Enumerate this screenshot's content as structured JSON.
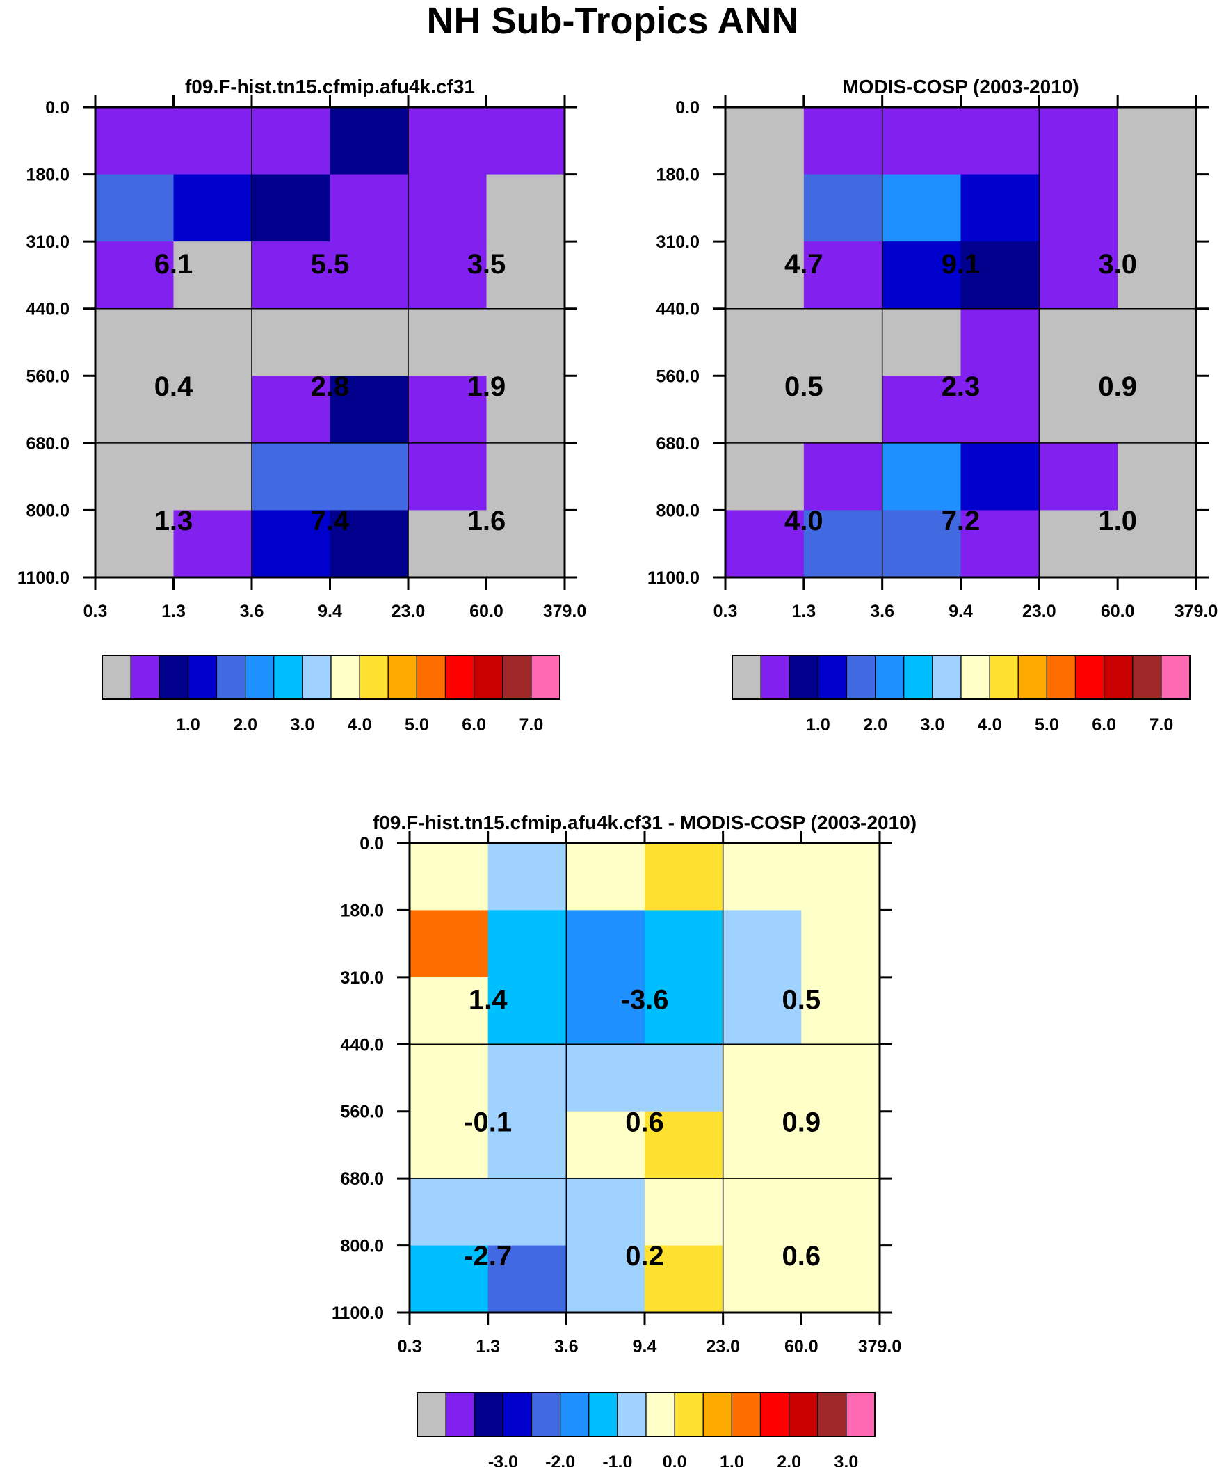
{
  "title": "NH Sub-Tropics ANN",
  "palette": {
    "missing": "#c0c0c0",
    "colors": [
      "#8220f0",
      "#00008c",
      "#0000cd",
      "#4169e1",
      "#1e90ff",
      "#00bfff",
      "#a0d2ff",
      "#ffffc8",
      "#ffe132",
      "#ffaa00",
      "#ff6e00",
      "#ff0000",
      "#c80000",
      "#a02828",
      "#ff69b4"
    ]
  },
  "chart_data": [
    {
      "type": "heatmap",
      "name": "model",
      "title": "f09.F-hist.tn15.cfmip.afu4k.cf31",
      "x_ticks": [
        "0.3",
        "1.3",
        "3.6",
        "9.4",
        "23.0",
        "60.0",
        "379.0"
      ],
      "y_ticks": [
        "0.0",
        "180.0",
        "310.0",
        "440.0",
        "560.0",
        "680.0",
        "800.0",
        "1100.0"
      ],
      "cells": [
        [
          0,
          0,
          0,
          1,
          0,
          0
        ],
        [
          3,
          2,
          1,
          0,
          0,
          -1
        ],
        [
          0,
          -1,
          0,
          0,
          0,
          -1
        ],
        [
          -1,
          -1,
          -1,
          -1,
          -1,
          -1
        ],
        [
          -1,
          -1,
          0,
          1,
          0,
          -1
        ],
        [
          -1,
          -1,
          3,
          3,
          0,
          -1
        ],
        [
          -1,
          0,
          2,
          1,
          -1,
          -1
        ]
      ],
      "box_values": [
        [
          "6.1",
          "5.5",
          "3.5"
        ],
        [
          "0.4",
          "2.8",
          "1.9"
        ],
        [
          "1.3",
          "7.4",
          "1.6"
        ]
      ],
      "colorbar_labels": [
        "1.0",
        "2.0",
        "3.0",
        "4.0",
        "5.0",
        "6.0",
        "7.0"
      ]
    },
    {
      "type": "heatmap",
      "name": "obs",
      "title": "MODIS-COSP (2003-2010)",
      "x_ticks": [
        "0.3",
        "1.3",
        "3.6",
        "9.4",
        "23.0",
        "60.0",
        "379.0"
      ],
      "y_ticks": [
        "0.0",
        "180.0",
        "310.0",
        "440.0",
        "560.0",
        "680.0",
        "800.0",
        "1100.0"
      ],
      "cells": [
        [
          -1,
          0,
          0,
          0,
          0,
          -1
        ],
        [
          -1,
          3,
          4,
          2,
          0,
          -1
        ],
        [
          -1,
          0,
          2,
          1,
          0,
          -1
        ],
        [
          -1,
          -1,
          -1,
          0,
          -1,
          -1
        ],
        [
          -1,
          -1,
          0,
          0,
          -1,
          -1
        ],
        [
          -1,
          0,
          4,
          2,
          0,
          -1
        ],
        [
          0,
          3,
          3,
          0,
          -1,
          -1
        ]
      ],
      "box_values": [
        [
          "4.7",
          "9.1",
          "3.0"
        ],
        [
          "0.5",
          "2.3",
          "0.9"
        ],
        [
          "4.0",
          "7.2",
          "1.0"
        ]
      ],
      "colorbar_labels": [
        "1.0",
        "2.0",
        "3.0",
        "4.0",
        "5.0",
        "6.0",
        "7.0"
      ]
    },
    {
      "type": "heatmap",
      "name": "diff",
      "title": "f09.F-hist.tn15.cfmip.afu4k.cf31 - MODIS-COSP (2003-2010)",
      "x_ticks": [
        "0.3",
        "1.3",
        "3.6",
        "9.4",
        "23.0",
        "60.0",
        "379.0"
      ],
      "y_ticks": [
        "0.0",
        "180.0",
        "310.0",
        "440.0",
        "560.0",
        "680.0",
        "800.0",
        "1100.0"
      ],
      "cells": [
        [
          7,
          6,
          7,
          8,
          7,
          7
        ],
        [
          10,
          5,
          4,
          5,
          6,
          7
        ],
        [
          7,
          5,
          4,
          5,
          6,
          7
        ],
        [
          7,
          6,
          6,
          6,
          7,
          7
        ],
        [
          7,
          6,
          7,
          8,
          7,
          7
        ],
        [
          6,
          6,
          6,
          7,
          7,
          7
        ],
        [
          5,
          3,
          6,
          8,
          7,
          7
        ]
      ],
      "box_values": [
        [
          "1.4",
          "-3.6",
          "0.5"
        ],
        [
          "-0.1",
          "0.6",
          "0.9"
        ],
        [
          "-2.7",
          "0.2",
          "0.6"
        ]
      ],
      "colorbar_labels": [
        "-3.0",
        "-2.0",
        "-1.0",
        "0.0",
        "1.0",
        "2.0",
        "3.0"
      ]
    }
  ]
}
